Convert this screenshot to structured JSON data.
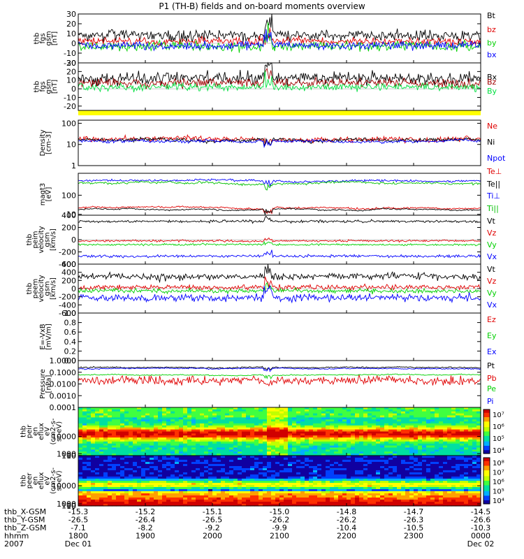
{
  "title": "P1 (TH-B) fields and on-board moments overview",
  "chart_data": [
    {
      "type": "line",
      "name": "fgs-gsm",
      "ylabel": [
        "thb",
        "fgs",
        "gsm",
        "[nT]"
      ],
      "ylim": [
        -20,
        30
      ],
      "ticks": [
        "30",
        "20",
        "10",
        "0",
        "-10",
        "-20"
      ],
      "tickvals": [
        30,
        20,
        10,
        0,
        -10,
        -20
      ],
      "series": [
        {
          "name": "Bt",
          "color": "#000000",
          "base": 8,
          "noise": 5
        },
        {
          "name": "bz",
          "color": "#e00000",
          "base": 2,
          "noise": 4
        },
        {
          "name": "by",
          "color": "#00d000",
          "base": -3,
          "noise": 5
        },
        {
          "name": "bx",
          "color": "#0000ff",
          "base": -2,
          "noise": 4
        }
      ]
    },
    {
      "type": "line",
      "name": "fgs-gsm-2",
      "ylabel": [
        "thb",
        "fgs",
        "gsm",
        "[nT]"
      ],
      "ylim": [
        -25,
        30
      ],
      "ticks": [
        "30",
        "20",
        "10",
        "0",
        "-10",
        "-20"
      ],
      "tickvals": [
        30,
        20,
        10,
        0,
        -10,
        -20
      ],
      "series": [
        {
          "name": "Bx",
          "color": "#000000",
          "base": 12,
          "noise": 7
        },
        {
          "name": "Bz",
          "color": "#a00000",
          "base": 7,
          "noise": 5
        },
        {
          "name": "By",
          "color": "#00e040",
          "base": 2,
          "noise": 4
        }
      ]
    },
    {
      "type": "line",
      "name": "density",
      "log": true,
      "ylabel": [
        "Density",
        "[cm-3]"
      ],
      "ylim": [
        1,
        140
      ],
      "ticks": [
        "100",
        "10",
        "1"
      ],
      "tickvals": [
        100,
        10,
        1
      ],
      "series": [
        {
          "name": "Ne",
          "color": "#e00000",
          "base": 18,
          "noise": 0.12
        },
        {
          "name": "Ni",
          "color": "#000000",
          "base": 16,
          "noise": 0.08
        },
        {
          "name": "Npot",
          "color": "#0000ff",
          "base": 15,
          "noise": 0.06
        }
      ]
    },
    {
      "type": "line",
      "name": "temperature",
      "log": true,
      "ylabel": [
        "magt3",
        "[eV]"
      ],
      "ylim": [
        9,
        1400
      ],
      "ticks": [
        "100",
        "10"
      ],
      "tickvals": [
        100,
        10
      ],
      "series": [
        {
          "name": "Te⊥",
          "color": "#e00000",
          "base": 22,
          "noise": 0.04
        },
        {
          "name": "Te||",
          "color": "#000000",
          "base": 18,
          "noise": 0.03
        },
        {
          "name": "Ti⊥",
          "color": "#0000ff",
          "base": 600,
          "noise": 0.05
        },
        {
          "name": "Ti||",
          "color": "#00c000",
          "base": 420,
          "noise": 0.05
        }
      ]
    },
    {
      "type": "line",
      "name": "peim-velocity",
      "ylabel": [
        "thb",
        "peim",
        "velocity",
        "gsm",
        "[km/s]"
      ],
      "ylim": [
        -400,
        400
      ],
      "ticks": [
        "400",
        "200",
        "0",
        "-200",
        "-400"
      ],
      "tickvals": [
        400,
        200,
        0,
        -200,
        -400
      ],
      "series": [
        {
          "name": "Vt",
          "color": "#000000",
          "base": 300,
          "noise": 20
        },
        {
          "name": "Vz",
          "color": "#e00000",
          "base": -20,
          "noise": 15
        },
        {
          "name": "Vy",
          "color": "#00d000",
          "base": -80,
          "noise": 15
        },
        {
          "name": "Vx",
          "color": "#0000ff",
          "base": -270,
          "noise": 20
        }
      ]
    },
    {
      "type": "line",
      "name": "peem-velocity",
      "ylabel": [
        "thb",
        "peem",
        "velocity",
        "gsm",
        "[km/s]"
      ],
      "ylim": [
        -600,
        600
      ],
      "ticks": [
        "600",
        "400",
        "200",
        "0",
        "-200",
        "-400",
        "-600"
      ],
      "tickvals": [
        600,
        400,
        200,
        0,
        -200,
        -400,
        -600
      ],
      "series": [
        {
          "name": "Vt",
          "color": "#000000",
          "base": 300,
          "noise": 80
        },
        {
          "name": "Vz",
          "color": "#e00000",
          "base": 30,
          "noise": 60
        },
        {
          "name": "Vy",
          "color": "#00d000",
          "base": -60,
          "noise": 50
        },
        {
          "name": "Vx",
          "color": "#0000ff",
          "base": -220,
          "noise": 90
        }
      ]
    },
    {
      "type": "line",
      "name": "efield",
      "ylabel": [
        "E=-VxB",
        "[mV/m]"
      ],
      "ylim": [
        0,
        1
      ],
      "ticks": [
        "1.0",
        "0.8",
        "0.6",
        "0.4",
        "0.2",
        "0.0"
      ],
      "tickvals": [
        1,
        0.8,
        0.6,
        0.4,
        0.2,
        0
      ],
      "series": [
        {
          "name": "Ez",
          "color": "#e00000"
        },
        {
          "name": "Ey",
          "color": "#00d000"
        },
        {
          "name": "Ex",
          "color": "#0000ff"
        }
      ]
    },
    {
      "type": "line",
      "name": "pressure",
      "log": true,
      "ylabel": [
        "Pressure",
        "[nPa]"
      ],
      "ylim": [
        0.0001,
        1
      ],
      "ticks": [
        "1.0000",
        "0.1000",
        "0.0100",
        "0.0010",
        "0.0001"
      ],
      "tickvals": [
        1,
        0.1,
        0.01,
        0.001,
        0.0001
      ],
      "series": [
        {
          "name": "Pt",
          "color": "#000000",
          "base": 0.25,
          "noise": 0.05
        },
        {
          "name": "Pb",
          "color": "#e00000",
          "base": 0.02,
          "noise": 0.35
        },
        {
          "name": "Pe",
          "color": "#00d000",
          "base": 0.06,
          "noise": 0.04
        },
        {
          "name": "Pi",
          "color": "#0000ff",
          "base": 0.2,
          "noise": 0.04
        }
      ]
    },
    {
      "type": "heatmap",
      "name": "peir-spectrogram",
      "ylabel": [
        "thb",
        "peir",
        "en",
        "eflux",
        "eV",
        "(cm2-s-",
        "sr-eV)"
      ],
      "ylim": [
        10,
        25000
      ],
      "ticks": [
        "10000",
        "1000",
        "100",
        "10"
      ],
      "tickvals": [
        10000,
        1000,
        100,
        10
      ],
      "colorbar": {
        "ticks": [
          "10⁷",
          "10⁶",
          "10⁵",
          "10⁴"
        ]
      }
    },
    {
      "type": "heatmap",
      "name": "peer-spectrogram",
      "ylabel": [
        "thb",
        "peer",
        "en",
        "eflux",
        "eV",
        "(cm2-s-",
        "sr-eV)"
      ],
      "ylim": [
        7,
        25000
      ],
      "ticks": [
        "10000",
        "1000",
        "100",
        "10"
      ],
      "tickvals": [
        10000,
        1000,
        100,
        10
      ],
      "colorbar": {
        "ticks": [
          "10⁸",
          "10⁷",
          "10⁶",
          "10⁵",
          "10⁴"
        ]
      }
    }
  ],
  "axis": {
    "row_labels": [
      "thb_X-GSM",
      "thb_Y-GSM",
      "thb_Z-GSM",
      "hhmm",
      "2007"
    ],
    "columns": [
      {
        "x": "-15.3",
        "y": "-26.5",
        "z": "-7.1",
        "time": "1800",
        "date": "Dec 01"
      },
      {
        "x": "-15.2",
        "y": "-26.4",
        "z": "-8.2",
        "time": "1900",
        "date": ""
      },
      {
        "x": "-15.1",
        "y": "-26.5",
        "z": "-9.2",
        "time": "2000",
        "date": ""
      },
      {
        "x": "-15.0",
        "y": "-26.2",
        "z": "-9.9",
        "time": "2100",
        "date": ""
      },
      {
        "x": "-14.8",
        "y": "-26.2",
        "z": "-10.4",
        "time": "2200",
        "date": ""
      },
      {
        "x": "-14.7",
        "y": "-26.3",
        "z": "-10.5",
        "time": "2300",
        "date": ""
      },
      {
        "x": "-14.5",
        "y": "-26.6",
        "z": "-10.3",
        "time": "0000",
        "date": "Dec 02"
      }
    ]
  }
}
